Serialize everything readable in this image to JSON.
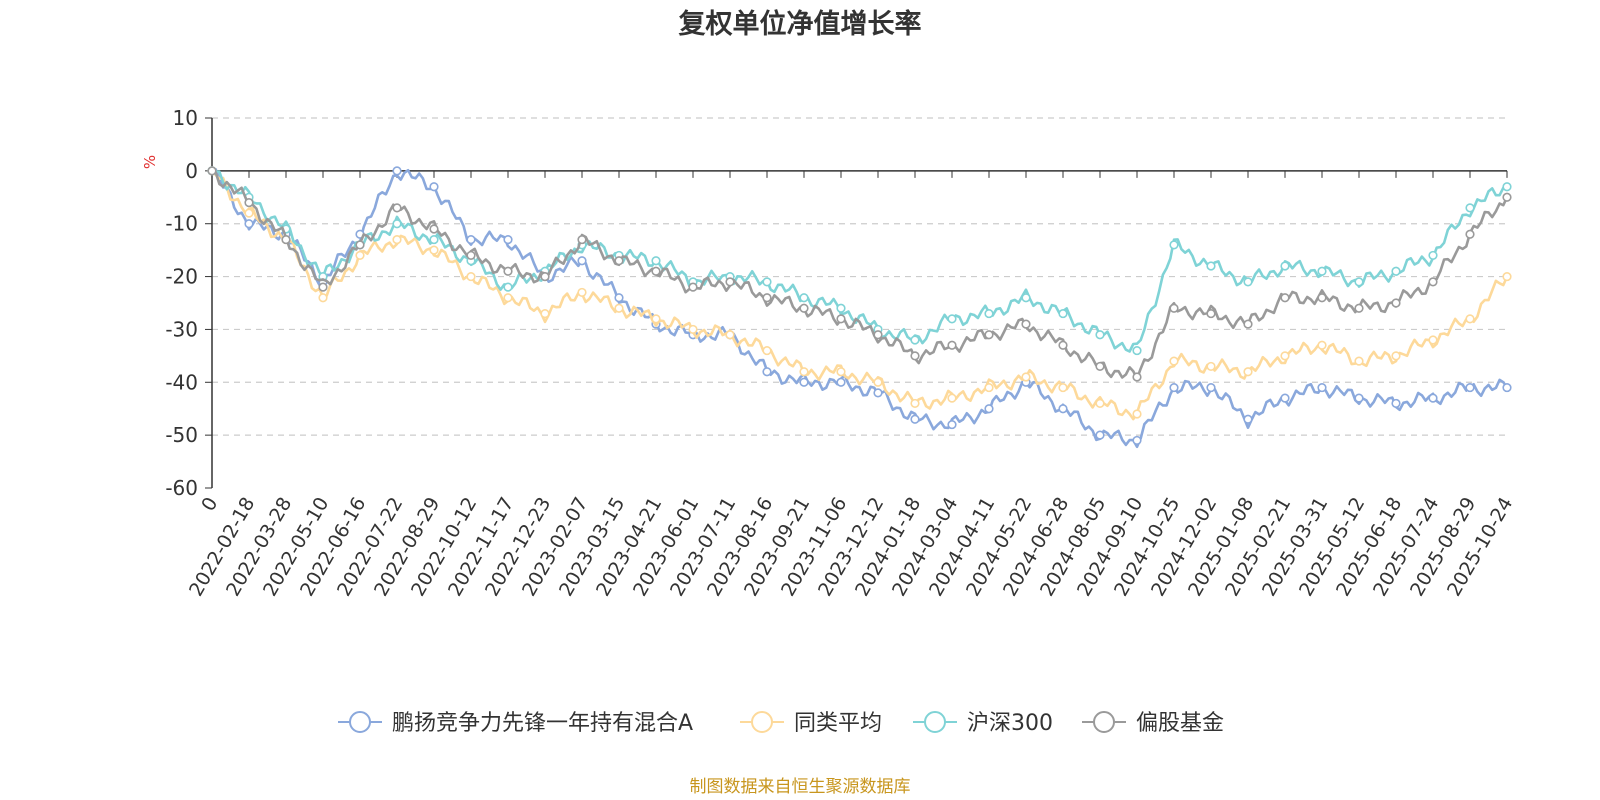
{
  "colors": {
    "series": [
      "#8aa8dc",
      "#fdd99a",
      "#7fd3d6",
      "#9a9a9a"
    ],
    "unit": "#e03030",
    "source": "#c8961e",
    "grid": "#cccccc",
    "axis": "#333333"
  },
  "chart_data": {
    "type": "line",
    "title": "复权单位净值增长率",
    "ylabel": "%",
    "ylim": [
      -60,
      10
    ],
    "yticks": [
      10,
      0,
      -10,
      -20,
      -30,
      -40,
      -50,
      -60
    ],
    "yticklabels": [
      "10",
      "0",
      "-10",
      "-20",
      "-30",
      "-40",
      "-50",
      "-60"
    ],
    "grid": true,
    "legend_position": "bottom-center",
    "x_categories": [
      "0",
      "2022-02-18",
      "2022-03-28",
      "2022-05-10",
      "2022-06-16",
      "2022-07-22",
      "2022-08-29",
      "2022-10-12",
      "2022-11-17",
      "2022-12-23",
      "2023-02-07",
      "2023-03-15",
      "2023-04-21",
      "2023-06-01",
      "2023-07-11",
      "2023-08-16",
      "2023-09-21",
      "2023-11-06",
      "2023-12-12",
      "2024-01-18",
      "2024-03-04",
      "2024-04-11",
      "2024-05-22",
      "2024-06-28",
      "2024-08-05",
      "2024-09-10",
      "2024-10-25",
      "2024-12-02",
      "2025-01-08",
      "2025-02-21",
      "2025-03-31",
      "2025-05-12",
      "2025-06-18",
      "2025-07-24",
      "2025-08-29",
      "2025-10-24"
    ],
    "series": [
      {
        "name": "鹏扬竞争力先锋一年持有混合A",
        "values": [
          0,
          -10,
          -12,
          -21,
          -12,
          0,
          -3,
          -13,
          -13,
          -20,
          -17,
          -24,
          -29,
          -31,
          -31,
          -38,
          -40,
          -40,
          -42,
          -47,
          -48,
          -45,
          -40,
          -45,
          -50,
          -51,
          -41,
          -41,
          -47,
          -43,
          -41,
          -43,
          -44,
          -43,
          -41,
          -41
        ]
      },
      {
        "name": "同类平均",
        "values": [
          0,
          -8,
          -13,
          -24,
          -16,
          -13,
          -15,
          -20,
          -24,
          -27,
          -23,
          -26,
          -28,
          -30,
          -31,
          -34,
          -38,
          -38,
          -40,
          -44,
          -43,
          -41,
          -39,
          -41,
          -44,
          -46,
          -36,
          -37,
          -38,
          -35,
          -33,
          -36,
          -35,
          -32,
          -28,
          -20
        ]
      },
      {
        "name": "沪深300",
        "values": [
          0,
          -5,
          -11,
          -20,
          -14,
          -10,
          -13,
          -17,
          -22,
          -19,
          -14,
          -16,
          -17,
          -21,
          -20,
          -21,
          -24,
          -26,
          -30,
          -32,
          -28,
          -27,
          -24,
          -27,
          -31,
          -34,
          -14,
          -18,
          -21,
          -18,
          -19,
          -21,
          -19,
          -16,
          -7,
          -3
        ]
      },
      {
        "name": "偏股基金",
        "values": [
          0,
          -6,
          -13,
          -22,
          -14,
          -7,
          -11,
          -16,
          -19,
          -20,
          -13,
          -17,
          -19,
          -22,
          -21,
          -24,
          -26,
          -28,
          -31,
          -35,
          -33,
          -31,
          -29,
          -33,
          -37,
          -39,
          -26,
          -27,
          -29,
          -24,
          -24,
          -26,
          -25,
          -21,
          -12,
          -5
        ]
      }
    ],
    "source": "制图数据来自恒生聚源数据库"
  }
}
